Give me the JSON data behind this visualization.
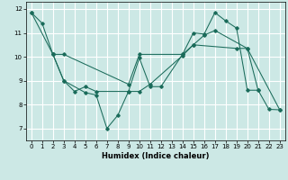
{
  "xlabel": "Humidex (Indice chaleur)",
  "xlim": [
    -0.5,
    23.5
  ],
  "ylim": [
    6.5,
    12.3
  ],
  "xticks": [
    0,
    1,
    2,
    3,
    4,
    5,
    6,
    7,
    8,
    9,
    10,
    11,
    12,
    13,
    14,
    15,
    16,
    17,
    18,
    19,
    20,
    21,
    22,
    23
  ],
  "yticks": [
    7,
    8,
    9,
    10,
    11,
    12
  ],
  "bg_color": "#cce8e5",
  "grid_color": "#ffffff",
  "line_color": "#1a6b5a",
  "s1_x": [
    0,
    1,
    2,
    3,
    5,
    6,
    7,
    8,
    9,
    10,
    11,
    12,
    14,
    15,
    16,
    17,
    18,
    19,
    20,
    21,
    22,
    23
  ],
  "s1_y": [
    11.85,
    11.4,
    10.1,
    9.0,
    8.5,
    8.4,
    7.0,
    7.55,
    8.55,
    9.95,
    8.75,
    8.75,
    10.1,
    11.0,
    10.95,
    11.85,
    11.5,
    11.2,
    8.6,
    8.6,
    7.8,
    7.78
  ],
  "s2_x": [
    2,
    3,
    4,
    5,
    6,
    9,
    10,
    11,
    14,
    15,
    16,
    17,
    20,
    21
  ],
  "s2_y": [
    10.1,
    9.0,
    8.55,
    8.75,
    8.55,
    8.55,
    8.55,
    8.85,
    10.05,
    10.5,
    10.9,
    11.1,
    10.35,
    8.6
  ],
  "s3_x": [
    0,
    2,
    3,
    9,
    10,
    14,
    15,
    19,
    20,
    23
  ],
  "s3_y": [
    11.85,
    10.1,
    10.1,
    8.85,
    10.1,
    10.1,
    10.5,
    10.35,
    10.35,
    7.78
  ]
}
